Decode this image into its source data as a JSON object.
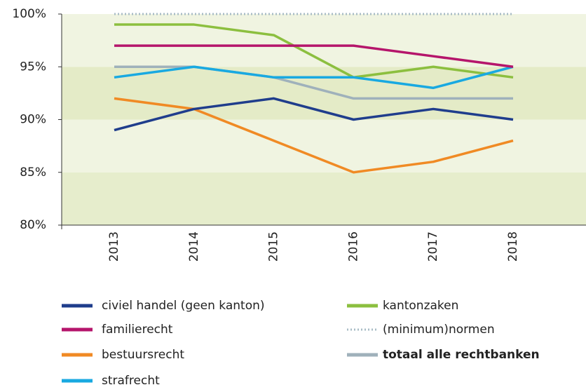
{
  "chart_data": {
    "type": "line",
    "categories": [
      "2013",
      "2014",
      "2015",
      "2016",
      "2017",
      "2018"
    ],
    "series": [
      {
        "name": "civiel handel (geen kanton)",
        "color": "#1f3d8c",
        "values": [
          89,
          91,
          92,
          90,
          91,
          90
        ]
      },
      {
        "name": "familierecht",
        "color": "#b5156b",
        "values": [
          97,
          97,
          97,
          97,
          96,
          95
        ]
      },
      {
        "name": "bestuursrecht",
        "color": "#f08a24",
        "values": [
          92,
          91,
          88,
          85,
          86,
          88
        ]
      },
      {
        "name": "strafrecht",
        "color": "#19a9e1",
        "values": [
          94,
          95,
          94,
          94,
          93,
          95
        ]
      },
      {
        "name": "kantonzaken",
        "color": "#8cbf3f",
        "values": [
          99,
          99,
          98,
          94,
          95,
          94
        ]
      },
      {
        "name": "(minimum)normen",
        "color": "#a8bcc6",
        "dash": "dotted",
        "values": [
          100,
          100,
          100,
          100,
          100,
          100
        ]
      },
      {
        "name": "totaal alle rechtbanken",
        "color": "#9fb1bb",
        "bold": true,
        "values": [
          95,
          95,
          94,
          92,
          92,
          92
        ]
      }
    ],
    "ylim": [
      80,
      100
    ],
    "yticks": [
      {
        "value": 80,
        "label": "80%"
      },
      {
        "value": 85,
        "label": "85%"
      },
      {
        "value": 90,
        "label": "90%"
      },
      {
        "value": 95,
        "label": "95%"
      },
      {
        "value": 100,
        "label": "100%"
      }
    ]
  }
}
